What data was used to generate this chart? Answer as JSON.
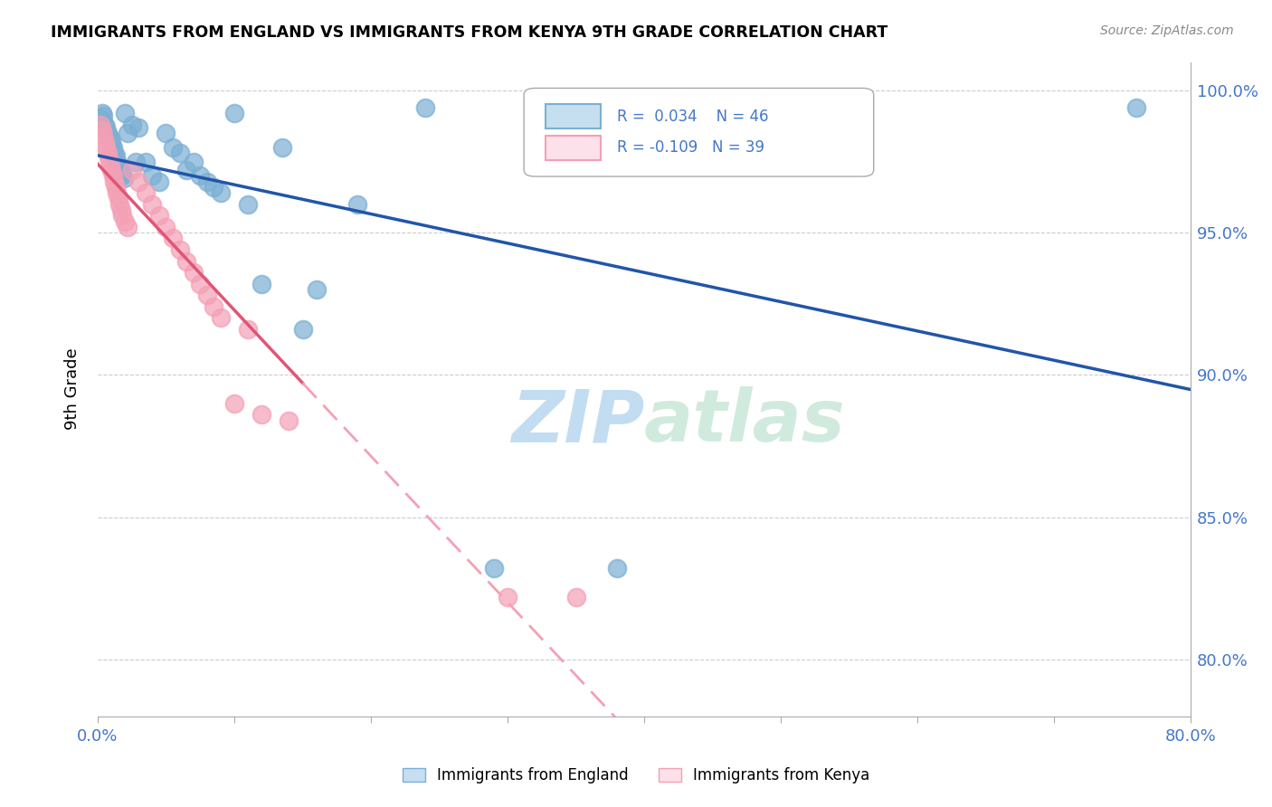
{
  "title": "IMMIGRANTS FROM ENGLAND VS IMMIGRANTS FROM KENYA 9TH GRADE CORRELATION CHART",
  "source": "Source: ZipAtlas.com",
  "ylabel": "9th Grade",
  "xlim": [
    0.0,
    0.8
  ],
  "ylim": [
    0.78,
    1.01
  ],
  "yticks_right": [
    0.8,
    0.85,
    0.9,
    0.95,
    1.0
  ],
  "yticklabels_right": [
    "80.0%",
    "85.0%",
    "90.0%",
    "95.0%",
    "100.0%"
  ],
  "legend_r_england": "0.034",
  "legend_n_england": "46",
  "legend_r_kenya": "-0.109",
  "legend_n_kenya": "39",
  "watermark_zip": "ZIP",
  "watermark_atlas": "atlas",
  "england_color": "#7bafd4",
  "kenya_color": "#f4a0b5",
  "trendline_england_color": "#2255aa",
  "trendline_kenya_solid_color": "#e05575",
  "trendline_kenya_dashed_color": "#f4a0b5",
  "grid_color": "#cccccc",
  "blue_text_color": "#4477cc",
  "england_scatter_x": [
    0.002,
    0.003,
    0.004,
    0.005,
    0.006,
    0.007,
    0.008,
    0.009,
    0.01,
    0.011,
    0.012,
    0.013,
    0.014,
    0.015,
    0.016,
    0.017,
    0.018,
    0.019,
    0.02,
    0.022,
    0.025,
    0.028,
    0.03,
    0.035,
    0.04,
    0.045,
    0.05,
    0.055,
    0.06,
    0.065,
    0.07,
    0.075,
    0.08,
    0.085,
    0.09,
    0.1,
    0.11,
    0.12,
    0.135,
    0.15,
    0.16,
    0.19,
    0.24,
    0.29,
    0.38,
    0.76
  ],
  "england_scatter_y": [
    0.99,
    0.992,
    0.991,
    0.988,
    0.987,
    0.985,
    0.984,
    0.983,
    0.982,
    0.98,
    0.978,
    0.977,
    0.975,
    0.974,
    0.972,
    0.971,
    0.97,
    0.969,
    0.992,
    0.985,
    0.988,
    0.975,
    0.987,
    0.975,
    0.97,
    0.968,
    0.985,
    0.98,
    0.978,
    0.972,
    0.975,
    0.97,
    0.968,
    0.966,
    0.964,
    0.992,
    0.96,
    0.932,
    0.98,
    0.916,
    0.93,
    0.96,
    0.994,
    0.832,
    0.832,
    0.994
  ],
  "kenya_scatter_x": [
    0.002,
    0.003,
    0.004,
    0.005,
    0.006,
    0.007,
    0.008,
    0.009,
    0.01,
    0.011,
    0.012,
    0.013,
    0.014,
    0.015,
    0.016,
    0.017,
    0.018,
    0.02,
    0.022,
    0.025,
    0.03,
    0.035,
    0.04,
    0.045,
    0.05,
    0.055,
    0.06,
    0.065,
    0.07,
    0.075,
    0.08,
    0.085,
    0.09,
    0.1,
    0.11,
    0.12,
    0.14,
    0.3,
    0.35
  ],
  "kenya_scatter_y": [
    0.988,
    0.986,
    0.984,
    0.982,
    0.98,
    0.978,
    0.976,
    0.974,
    0.972,
    0.97,
    0.968,
    0.966,
    0.964,
    0.962,
    0.96,
    0.958,
    0.956,
    0.954,
    0.952,
    0.972,
    0.968,
    0.964,
    0.96,
    0.956,
    0.952,
    0.948,
    0.944,
    0.94,
    0.936,
    0.932,
    0.928,
    0.924,
    0.92,
    0.89,
    0.916,
    0.886,
    0.884,
    0.822,
    0.822
  ]
}
